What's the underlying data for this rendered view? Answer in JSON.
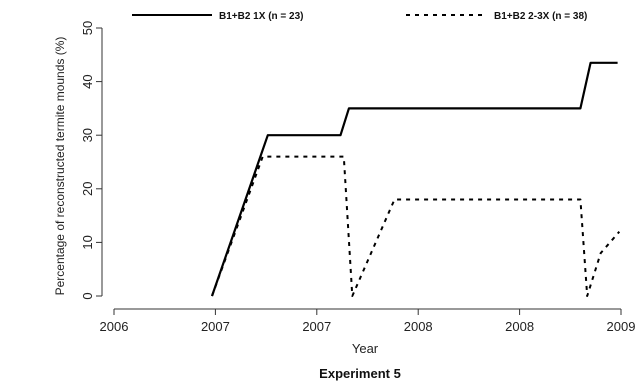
{
  "chart_data": {
    "type": "line",
    "xlabel": "Year",
    "ylabel": "Percentage of reconstructed termite mounds (%)",
    "caption": "Experiment 5",
    "xlim": [
      2006.0,
      2009.0
    ],
    "ylim": [
      0,
      50
    ],
    "x_ticks": [
      {
        "value": 2006.0,
        "label": "2006"
      },
      {
        "value": 2006.6,
        "label": "2007"
      },
      {
        "value": 2007.2,
        "label": "2007"
      },
      {
        "value": 2007.8,
        "label": "2008"
      },
      {
        "value": 2008.4,
        "label": "2008"
      },
      {
        "value": 2009.0,
        "label": "2009"
      }
    ],
    "y_ticks": [
      0,
      10,
      20,
      30,
      40,
      50
    ],
    "grid": false,
    "legend_position": "top",
    "series": [
      {
        "name": "B1+B2 1X (n = 23)",
        "style": "solid",
        "color": "#000000",
        "points": [
          [
            2006.58,
            0
          ],
          [
            2006.91,
            30
          ],
          [
            2007.34,
            30
          ],
          [
            2007.39,
            35
          ],
          [
            2008.76,
            35
          ],
          [
            2008.82,
            43.5
          ],
          [
            2008.98,
            43.5
          ]
        ]
      },
      {
        "name": "B1+B2 2-3X (n = 38)",
        "style": "dashed",
        "color": "#000000",
        "points": [
          [
            2006.58,
            0
          ],
          [
            2006.88,
            26
          ],
          [
            2007.36,
            26
          ],
          [
            2007.41,
            0
          ],
          [
            2007.66,
            18
          ],
          [
            2008.76,
            18
          ],
          [
            2008.8,
            0
          ],
          [
            2008.88,
            8
          ],
          [
            2008.99,
            12
          ]
        ]
      }
    ]
  }
}
